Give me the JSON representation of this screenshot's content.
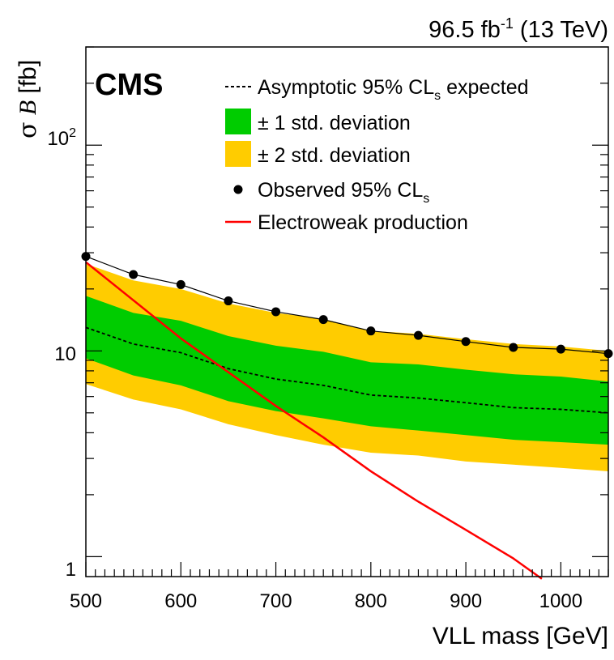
{
  "chart_data": {
    "type": "line",
    "experiment_label": "CMS",
    "luminosity": {
      "value": "96.5 fb",
      "superscript": "-1",
      "energy": " (13 TeV)"
    },
    "xlabel": "VLL mass [GeV]",
    "ylabel": {
      "sigma": "σ",
      "b": "B",
      "unit": " [fb]"
    },
    "xlim": [
      500,
      1050
    ],
    "ylim": [
      0.8,
      300
    ],
    "yscale": "log",
    "x_ticks": [
      500,
      600,
      700,
      800,
      900,
      1000
    ],
    "x_tick_labels": [
      "500",
      "600",
      "700",
      "800",
      "900",
      "1000"
    ],
    "y_ticks": [
      1,
      10,
      100
    ],
    "y_tick_labels": {
      "one": "1",
      "ten": "10",
      "hundred_base": "10",
      "hundred_exp": "2"
    },
    "legend": {
      "placement": "top-right",
      "expected": {
        "text": "Asymptotic 95% CL",
        "sub": "s",
        "tail": " expected"
      },
      "one_sigma": "± 1 std. deviation",
      "two_sigma": "± 2 std. deviation",
      "observed": {
        "text": "Observed 95% CL",
        "sub": "s"
      },
      "theory": "Electroweak production"
    },
    "colors": {
      "one_sigma": "#00cc00",
      "two_sigma": "#ffcc00",
      "theory": "#ff0000",
      "observed": "#000000",
      "expected": "#000000"
    },
    "x": [
      500,
      550,
      600,
      650,
      700,
      750,
      800,
      850,
      900,
      950,
      1000,
      1050
    ],
    "series": [
      {
        "name": "Observed 95% CL_s",
        "kind": "observed",
        "values": [
          28.8,
          23.5,
          21.0,
          17.5,
          15.5,
          14.2,
          12.5,
          11.9,
          11.1,
          10.4,
          10.2,
          9.7
        ]
      },
      {
        "name": "Asymptotic 95% CL_s expected",
        "kind": "expected",
        "values": [
          13.0,
          10.8,
          9.8,
          8.2,
          7.3,
          6.8,
          6.1,
          5.9,
          5.6,
          5.3,
          5.2,
          5.0
        ]
      },
      {
        "name": "± 1 std. deviation",
        "kind": "band",
        "low": [
          9.2,
          7.6,
          6.8,
          5.7,
          5.1,
          4.7,
          4.3,
          4.1,
          3.9,
          3.7,
          3.6,
          3.5
        ],
        "high": [
          18.5,
          15.3,
          14.0,
          11.8,
          10.6,
          9.9,
          8.8,
          8.6,
          8.1,
          7.7,
          7.5,
          7.1
        ]
      },
      {
        "name": "± 2 std. deviation",
        "kind": "band",
        "low": [
          6.9,
          5.8,
          5.2,
          4.4,
          3.9,
          3.5,
          3.2,
          3.1,
          2.9,
          2.8,
          2.7,
          2.6
        ],
        "high": [
          26.5,
          22.0,
          20.0,
          17.0,
          15.3,
          14.3,
          12.5,
          12.1,
          11.4,
          10.8,
          10.5,
          10.0
        ]
      },
      {
        "name": "Electroweak production",
        "kind": "theory",
        "x": [
          500,
          600,
          700,
          750,
          800,
          850,
          900,
          950,
          980
        ],
        "values": [
          27.0,
          11.5,
          5.4,
          3.8,
          2.6,
          1.85,
          1.35,
          0.98,
          0.78
        ]
      }
    ]
  }
}
